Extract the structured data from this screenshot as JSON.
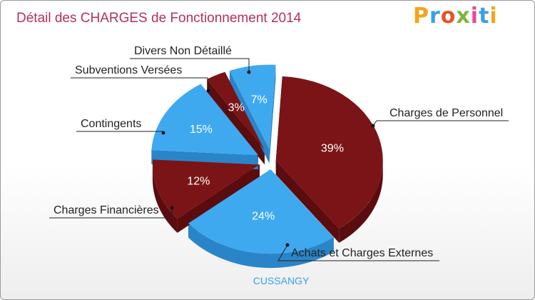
{
  "title": "Détail des CHARGES de Fonctionnement 2014",
  "logo": {
    "text": "Proxiti",
    "colors": [
      "#f2a51b",
      "#3aa0e6",
      "#e8532a",
      "#7cb83d",
      "#e94b8f",
      "#3aa0e6",
      "#f2a51b"
    ]
  },
  "footer": "CUSSANGY",
  "chart_data": {
    "type": "pie",
    "title": "Détail des CHARGES de Fonctionnement 2014",
    "slices": [
      {
        "label": "Charges de Personnel",
        "value": 39,
        "value_label": "39%",
        "color": "#7a1416",
        "side_color": "#5a0c0e"
      },
      {
        "label": "Achats et Charges Externes",
        "value": 24,
        "value_label": "24%",
        "color": "#3fa9f0",
        "side_color": "#2a85c8"
      },
      {
        "label": "Charges Financières",
        "value": 12,
        "value_label": "12%",
        "color": "#7a1416",
        "side_color": "#5a0c0e"
      },
      {
        "label": "Contingents",
        "value": 15,
        "value_label": "15%",
        "color": "#3fa9f0",
        "side_color": "#2a85c8"
      },
      {
        "label": "Subventions Versées",
        "value": 3,
        "value_label": "3%",
        "color": "#7a1416",
        "side_color": "#5a0c0e"
      },
      {
        "label": "Divers Non Détaillé",
        "value": 7,
        "value_label": "7%",
        "color": "#3fa9f0",
        "side_color": "#2a85c8"
      }
    ]
  }
}
